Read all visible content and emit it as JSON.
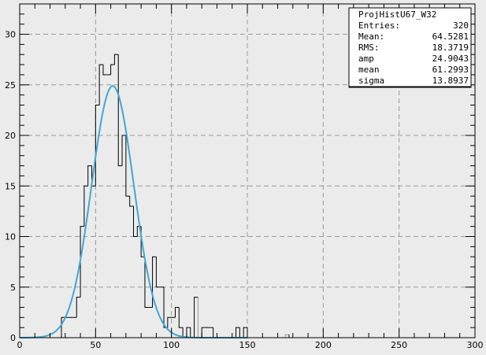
{
  "chart_data": {
    "type": "histogram",
    "xlim": [
      0,
      300
    ],
    "ylim": [
      0,
      33
    ],
    "x_ticks": [
      0,
      50,
      100,
      150,
      200,
      250,
      300
    ],
    "y_ticks": [
      0,
      5,
      10,
      15,
      20,
      25,
      30
    ],
    "grid": true,
    "bin_width": 2.5,
    "bins": [
      [
        27.5,
        2
      ],
      [
        30,
        2
      ],
      [
        32.5,
        2
      ],
      [
        35,
        2
      ],
      [
        37.5,
        4
      ],
      [
        40,
        11
      ],
      [
        42.5,
        15
      ],
      [
        45,
        17
      ],
      [
        47.5,
        15
      ],
      [
        50,
        23
      ],
      [
        52.5,
        27
      ],
      [
        55,
        26
      ],
      [
        57.5,
        26
      ],
      [
        60,
        27
      ],
      [
        62.5,
        28
      ],
      [
        65,
        17
      ],
      [
        67.5,
        20
      ],
      [
        70,
        14
      ],
      [
        72.5,
        13
      ],
      [
        75,
        10
      ],
      [
        77.5,
        11
      ],
      [
        80,
        8
      ],
      [
        82.5,
        3
      ],
      [
        85,
        3
      ],
      [
        87.5,
        8
      ],
      [
        90,
        5
      ],
      [
        92.5,
        5
      ],
      [
        95,
        1
      ],
      [
        97.5,
        2
      ],
      [
        100,
        2
      ],
      [
        102.5,
        3
      ],
      [
        105,
        1
      ],
      [
        110,
        1
      ],
      [
        115,
        4
      ],
      [
        117.5,
        0
      ],
      [
        120,
        1
      ],
      [
        122.5,
        1
      ],
      [
        125,
        1
      ],
      [
        142.5,
        1
      ],
      [
        147.5,
        1
      ],
      [
        175,
        0.3
      ]
    ],
    "fit": {
      "function": "gaus",
      "amp": 24.9043,
      "mean": 61.2993,
      "sigma": 13.8937,
      "color": "#3fa7d6"
    },
    "stats_box": {
      "title": "ProjHistU67_W32",
      "rows": [
        {
          "label": "Entries:",
          "value": "320"
        },
        {
          "label": "Mean:",
          "value": "64.5281"
        },
        {
          "label": "RMS:",
          "value": "18.3719"
        },
        {
          "label": "amp",
          "value": "24.9043"
        },
        {
          "label": "mean",
          "value": "61.2993"
        },
        {
          "label": "sigma",
          "value": "13.8937"
        }
      ]
    }
  }
}
